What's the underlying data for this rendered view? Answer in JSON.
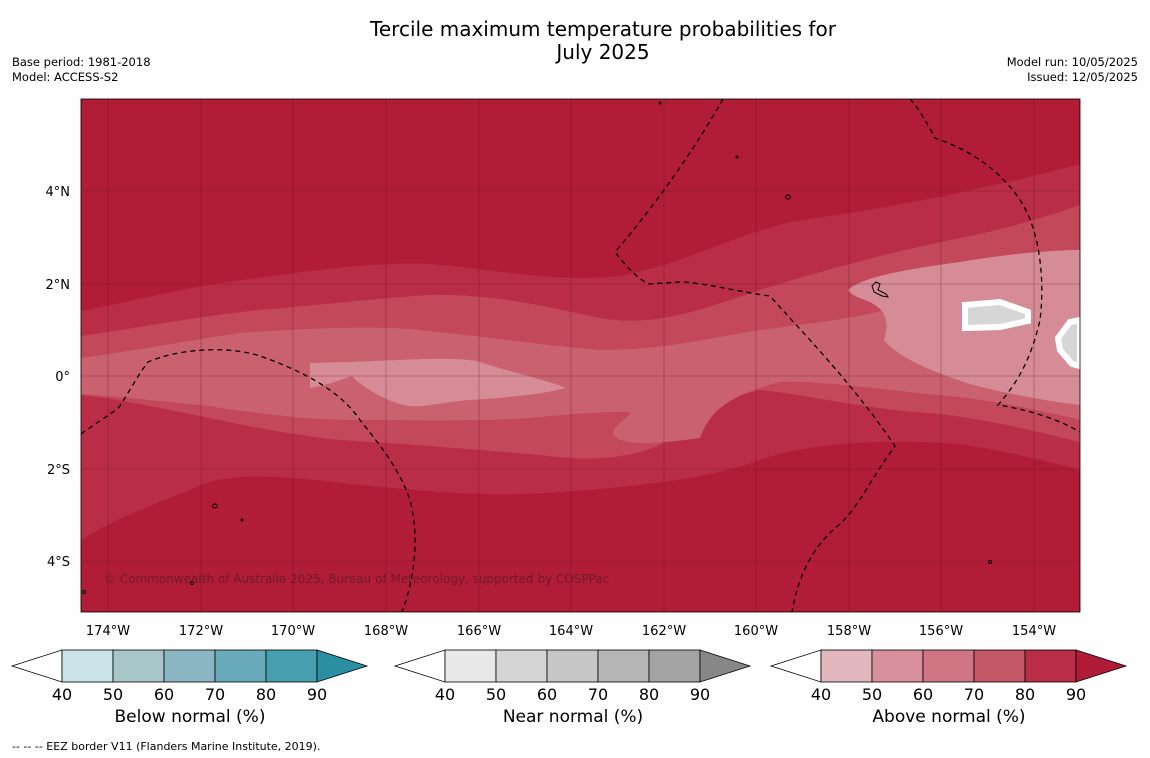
{
  "title_line1": "Tercile maximum temperature probabilities for",
  "title_line2": "July 2025",
  "meta_left": [
    "Base period: 1981-2018",
    "Model: ACCESS-S2"
  ],
  "meta_right": [
    "Model run: 10/05/2025",
    "Issued: 12/05/2025"
  ],
  "copyright": "© Commonwealth of Australia 2025, Bureau of Meteorology, supported by COSPPac",
  "footnote": "--  --  -- EEZ border V11 (Flanders Marine Institute, 2019).",
  "lat_labels": [
    "4°N",
    "2°N",
    "0°",
    "2°S",
    "4°S"
  ],
  "lon_labels": [
    "174°W",
    "172°W",
    "170°W",
    "168°W",
    "166°W",
    "164°W",
    "162°W",
    "160°W",
    "158°W",
    "156°W",
    "154°W"
  ],
  "colorbars": [
    {
      "label": "Below normal (%)",
      "ticks": [
        "40",
        "50",
        "60",
        "70",
        "80",
        "90"
      ],
      "colors": [
        "#cbe2e8",
        "#a8c5ca",
        "#8ab7c3",
        "#6aabbb",
        "#469faf",
        "#2b8fa3"
      ]
    },
    {
      "label": "Near normal (%)",
      "ticks": [
        "40",
        "50",
        "60",
        "70",
        "80",
        "90"
      ],
      "colors": [
        "#e8e8e8",
        "#d5d5d5",
        "#c6c6c6",
        "#b5b5b5",
        "#a3a3a3",
        "#878787"
      ]
    },
    {
      "label": "Above normal (%)",
      "ticks": [
        "40",
        "50",
        "60",
        "70",
        "80",
        "90"
      ],
      "colors": [
        "#e2b7bd",
        "#d8919c",
        "#cf7583",
        "#c45868",
        "#b92e46",
        "#b01c37"
      ]
    }
  ],
  "map_colors": {
    "p90": "#b11d37",
    "p80": "#b92e46",
    "p70": "#c2485a",
    "p60": "#c9626e",
    "p50": "#d68c96",
    "near": "#d6d6d6",
    "grid": "#5a1320",
    "white": "#ffffff"
  }
}
